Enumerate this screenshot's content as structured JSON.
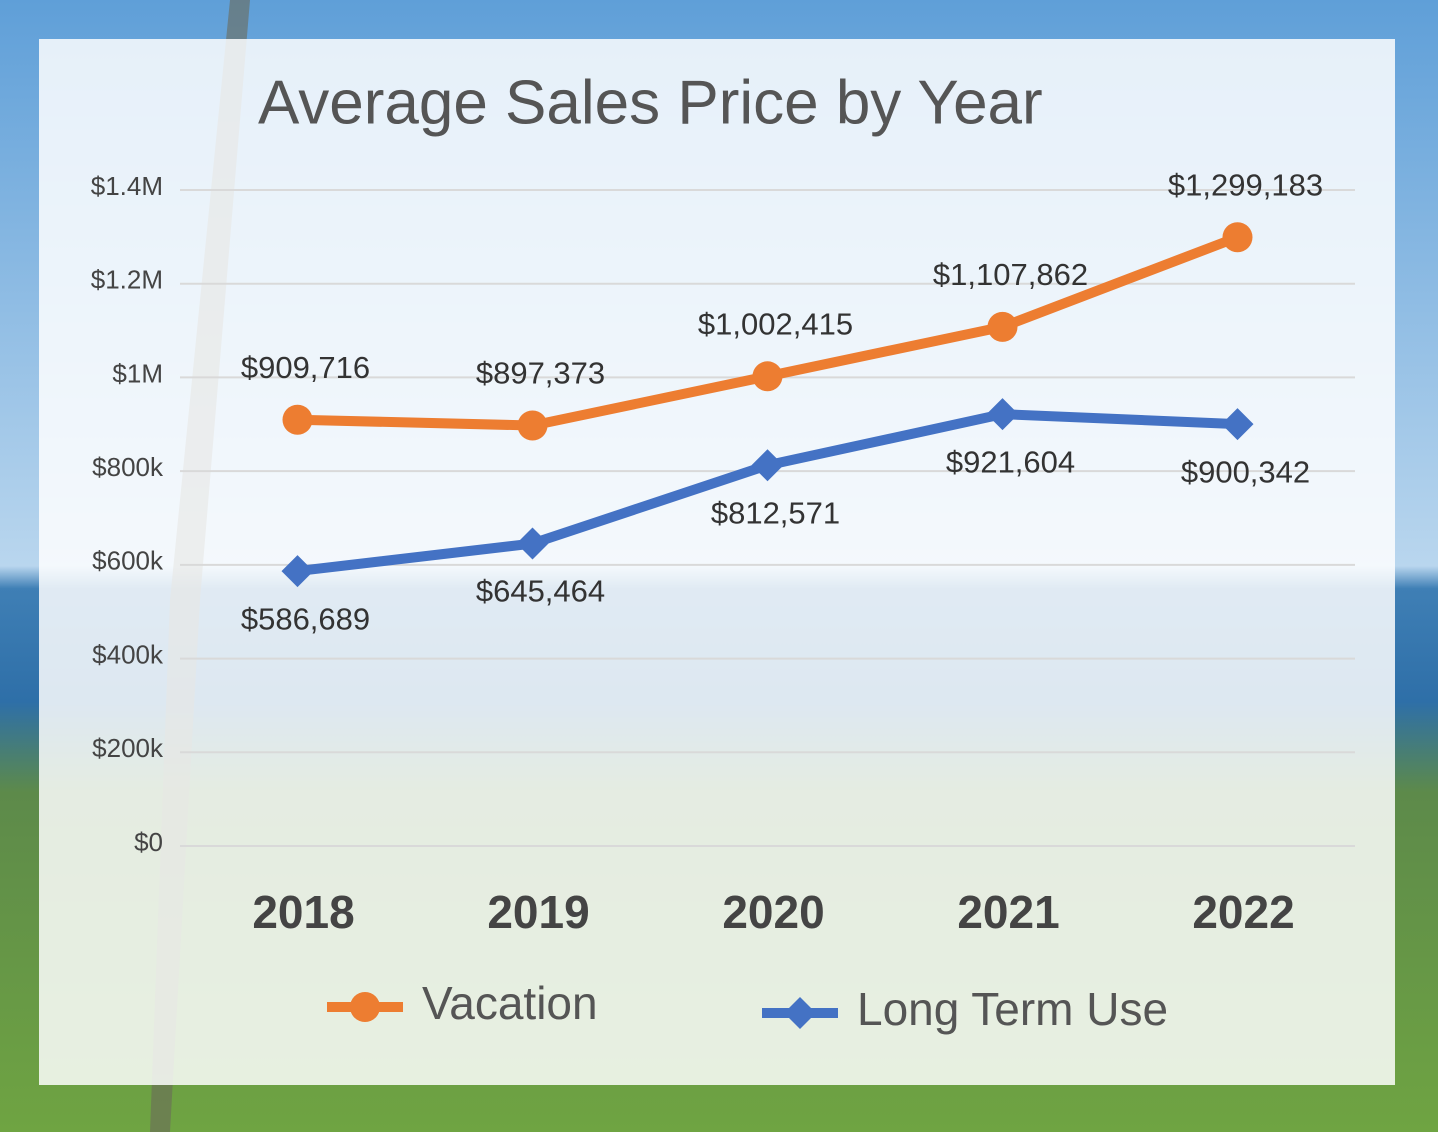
{
  "chart_data": {
    "type": "line",
    "title": "Average Sales Price by Year",
    "categories": [
      "2018",
      "2019",
      "2020",
      "2021",
      "2022"
    ],
    "series": [
      {
        "name": "Vacation",
        "color": "#ed7d31",
        "marker": "circle",
        "label_position": "above",
        "values": [
          909716,
          897373,
          1002415,
          1107862,
          1299183
        ],
        "value_labels": [
          "$909,716",
          "$897,373",
          "$1,002,415",
          "$1,107,862",
          "$1,299,183"
        ]
      },
      {
        "name": "Long Term Use",
        "color": "#4472c4",
        "marker": "diamond",
        "label_position": "below",
        "values": [
          586689,
          645464,
          812571,
          921604,
          900342
        ],
        "value_labels": [
          "$586,689",
          "$645,464",
          "$812,571",
          "$921,604",
          "$900,342"
        ]
      }
    ],
    "ylim": [
      0,
      1400000
    ],
    "yticks": [
      {
        "value": 0,
        "label": "$0"
      },
      {
        "value": 200000,
        "label": "$200k"
      },
      {
        "value": 400000,
        "label": "$400k"
      },
      {
        "value": 600000,
        "label": "$600k"
      },
      {
        "value": 800000,
        "label": "$800k"
      },
      {
        "value": 1000000,
        "label": "$1M"
      },
      {
        "value": 1200000,
        "label": "$1.2M"
      },
      {
        "value": 1400000,
        "label": "$1.4M"
      }
    ],
    "grid": true,
    "legend": "bottom"
  }
}
